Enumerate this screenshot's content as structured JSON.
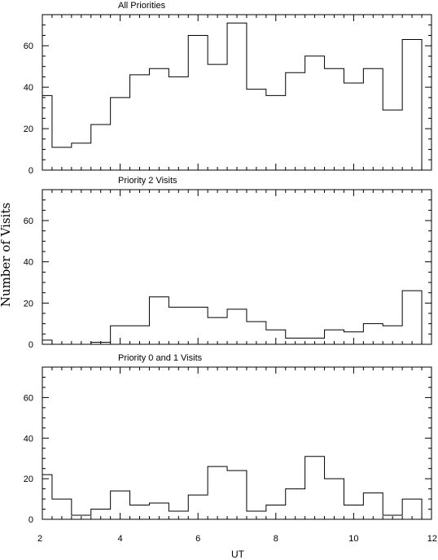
{
  "chart_data": [
    {
      "type": "histogram",
      "title": "All Priorities",
      "bin_edges": [
        2.0,
        2.25,
        2.75,
        3.25,
        3.75,
        4.25,
        4.75,
        5.25,
        5.75,
        6.25,
        6.75,
        7.25,
        7.75,
        8.25,
        8.75,
        9.25,
        9.75,
        10.25,
        10.75,
        11.25,
        11.75
      ],
      "values": [
        36,
        11,
        13,
        22,
        35,
        46,
        49,
        45,
        65,
        51,
        71,
        39,
        36,
        47,
        55,
        49,
        42,
        49,
        29,
        63
      ]
    },
    {
      "type": "histogram",
      "title": "Priority 2 Visits",
      "bin_edges": [
        2.0,
        2.25,
        2.75,
        3.25,
        3.75,
        4.25,
        4.75,
        5.25,
        5.75,
        6.25,
        6.75,
        7.25,
        7.75,
        8.25,
        8.75,
        9.25,
        9.75,
        10.25,
        10.75,
        11.25,
        11.75
      ],
      "values": [
        2,
        0,
        0,
        1,
        9,
        9,
        23,
        18,
        18,
        13,
        17,
        11,
        7,
        3,
        3,
        7,
        6,
        10,
        9,
        26
      ]
    },
    {
      "type": "histogram",
      "title": "Priority 0 and 1 Visits",
      "bin_edges": [
        2.0,
        2.25,
        2.75,
        3.25,
        3.75,
        4.25,
        4.75,
        5.25,
        5.75,
        6.25,
        6.75,
        7.25,
        7.75,
        8.25,
        8.75,
        9.25,
        9.75,
        10.25,
        10.75,
        11.25,
        11.75
      ],
      "values": [
        22,
        10,
        2,
        5,
        14,
        7,
        8,
        4,
        12,
        26,
        24,
        4,
        7,
        15,
        31,
        20,
        7,
        13,
        2,
        10
      ]
    }
  ],
  "axes": {
    "xlabel": "UT",
    "ylabel": "Number of Visits",
    "xlim": [
      2,
      12
    ],
    "ylim": [
      0,
      75
    ],
    "x_ticks": [
      2,
      4,
      6,
      8,
      10,
      12
    ],
    "y_ticks": [
      0,
      20,
      40,
      60
    ],
    "x_tick_labels": [
      "2",
      "4",
      "6",
      "8",
      "10",
      "12"
    ],
    "y_tick_labels": [
      "0",
      "20",
      "40",
      "60"
    ],
    "grid": false,
    "line_color": "#000000"
  }
}
